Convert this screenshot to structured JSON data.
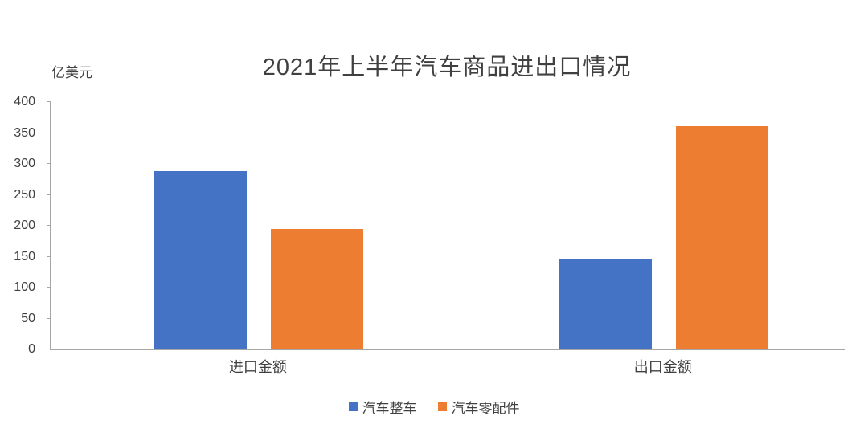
{
  "chart_data": {
    "type": "bar",
    "title": "2021年上半年汽车商品进出口情况",
    "y_axis_unit": "亿美元",
    "categories": [
      "进口金额",
      "出口金额"
    ],
    "series": [
      {
        "name": "汽车整车",
        "color": "#4472C4",
        "values": [
          288,
          145
        ]
      },
      {
        "name": "汽车零配件",
        "color": "#ED7D31",
        "values": [
          195,
          361
        ]
      }
    ],
    "ylim": [
      0,
      400
    ],
    "y_tick_step": 50,
    "grid": false,
    "legend_position": "bottom",
    "xlabel": "",
    "ylabel": ""
  }
}
